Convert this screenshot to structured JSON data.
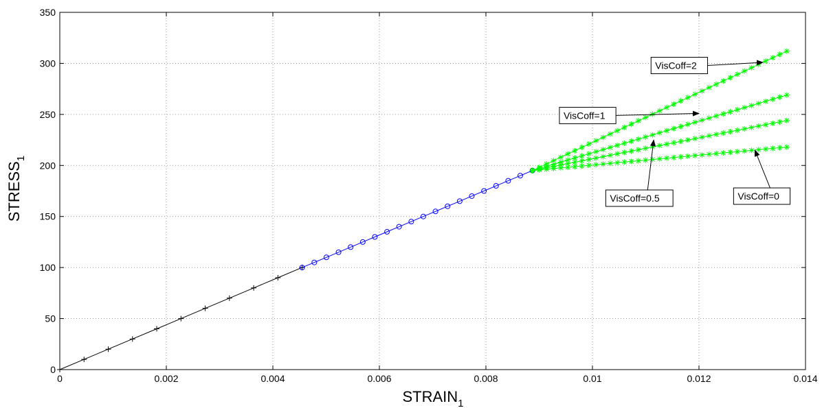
{
  "chart_data": {
    "type": "line",
    "xlabel": "STRAIN",
    "xlabel_sub": "1",
    "ylabel": "STRESS",
    "ylabel_sub": "1",
    "xlim": [
      0,
      0.014
    ],
    "ylim": [
      0,
      350
    ],
    "xticks": [
      0,
      0.002,
      0.004,
      0.006,
      0.008,
      0.01,
      0.012,
      0.014
    ],
    "xtick_labels": [
      "0",
      "0.002",
      "0.004",
      "0.006",
      "0.008",
      "0.01",
      "0.012",
      "0.014"
    ],
    "yticks": [
      0,
      50,
      100,
      150,
      200,
      250,
      300,
      350
    ],
    "ytick_labels": [
      "0",
      "50",
      "100",
      "150",
      "200",
      "250",
      "300",
      "350"
    ],
    "grid": true,
    "series": [
      {
        "color": "#000000",
        "marker": "plus",
        "x": [
          0,
          0.000455,
          0.00091,
          0.001365,
          0.00182,
          0.002275,
          0.00273,
          0.003185,
          0.00364,
          0.004095,
          0.00455
        ],
        "y": [
          0,
          10,
          20,
          30,
          40,
          50,
          60,
          70,
          80,
          90,
          100
        ]
      },
      {
        "color": "#0000ff",
        "marker": "circle",
        "x": [
          0.00455,
          0.004778,
          0.005005,
          0.005233,
          0.00546,
          0.005688,
          0.005915,
          0.006143,
          0.00637,
          0.006598,
          0.006825,
          0.007053,
          0.00728,
          0.007508,
          0.007735,
          0.007963,
          0.00819,
          0.008418,
          0.008645,
          0.008873
        ],
        "y": [
          100,
          105,
          110,
          115,
          120,
          125,
          130,
          135,
          140,
          145,
          150,
          155,
          160,
          165,
          170,
          175,
          180,
          185,
          190,
          195
        ]
      },
      {
        "color": "#00ff00",
        "marker": "star",
        "x_start": 0.008873,
        "y_start": 195,
        "x_end": 0.01365,
        "y_end": 312,
        "points": 37
      },
      {
        "color": "#00ff00",
        "marker": "star",
        "x_start": 0.008873,
        "y_start": 195,
        "x_end": 0.01365,
        "y_end": 269,
        "points": 37
      },
      {
        "color": "#00ff00",
        "marker": "star",
        "x_start": 0.008873,
        "y_start": 195,
        "x_end": 0.01365,
        "y_end": 244,
        "points": 37
      },
      {
        "color": "#00ff00",
        "marker": "star",
        "x_start": 0.008873,
        "y_start": 195,
        "x_end": 0.01365,
        "y_end": 218,
        "points": 37
      }
    ],
    "annotations": [
      {
        "text": "VisCoff=2",
        "box_x": 0.0111,
        "box_y": 306,
        "arrow_to_x": 0.0132,
        "arrow_to_y": 301
      },
      {
        "text": "VisCoff=1",
        "box_x": 0.00938,
        "box_y": 257,
        "arrow_to_x": 0.012,
        "arrow_to_y": 251
      },
      {
        "text": "VisCoff=0.5",
        "box_x": 0.01025,
        "box_y": 176,
        "arrow_to_x": 0.01115,
        "arrow_to_y": 225
      },
      {
        "text": "VisCoff=0",
        "box_x": 0.01265,
        "box_y": 178,
        "arrow_to_x": 0.01305,
        "arrow_to_y": 215
      }
    ]
  }
}
